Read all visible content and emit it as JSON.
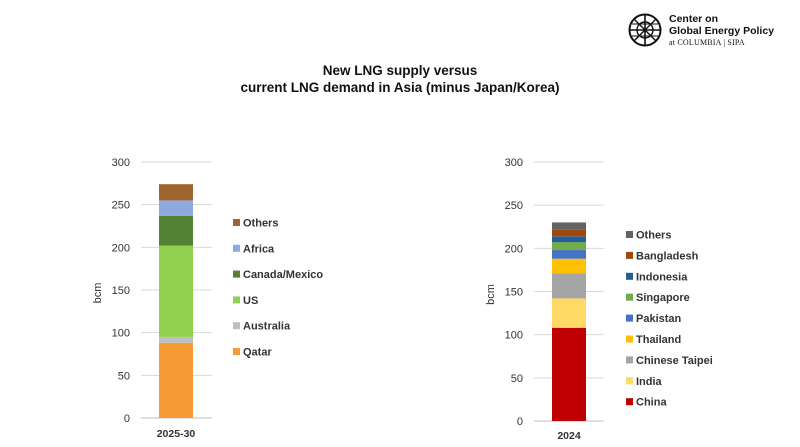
{
  "header": {
    "org_line1": "Center on",
    "org_line2": "Global Energy Policy",
    "org_line3": "at COLUMBIA | SIPA",
    "title_line1": "New LNG supply versus",
    "title_line2": "current LNG demand in Asia (minus Japan/Korea)"
  },
  "chart_data": [
    {
      "type": "bar",
      "stacked": true,
      "categories": [
        "2025-30"
      ],
      "ylabel": "bcm",
      "ylim": [
        0,
        300
      ],
      "yticks": [
        0,
        50,
        100,
        150,
        200,
        250,
        300
      ],
      "grid": true,
      "legend_position": "right",
      "series": [
        {
          "name": "Qatar",
          "values": [
            88
          ],
          "color": "#F99B34"
        },
        {
          "name": "Australia",
          "values": [
            7
          ],
          "color": "#BFBFBF"
        },
        {
          "name": "US",
          "values": [
            107
          ],
          "color": "#92D050"
        },
        {
          "name": "Canada/Mexico",
          "values": [
            35
          ],
          "color": "#548235"
        },
        {
          "name": "Africa",
          "values": [
            18
          ],
          "color": "#8EA9DB"
        },
        {
          "name": "Others",
          "values": [
            19
          ],
          "color": "#A0652E"
        }
      ]
    },
    {
      "type": "bar",
      "stacked": true,
      "categories": [
        "2024"
      ],
      "ylabel": "bcm",
      "ylim": [
        0,
        300
      ],
      "yticks": [
        0,
        50,
        100,
        150,
        200,
        250,
        300
      ],
      "grid": true,
      "legend_position": "right",
      "series": [
        {
          "name": "China",
          "values": [
            108
          ],
          "color": "#C00000"
        },
        {
          "name": "India",
          "values": [
            34
          ],
          "color": "#FFD966"
        },
        {
          "name": "Chinese Taipei",
          "values": [
            29
          ],
          "color": "#A5A5A5"
        },
        {
          "name": "Thailand",
          "values": [
            17
          ],
          "color": "#FFC000"
        },
        {
          "name": "Pakistan",
          "values": [
            10
          ],
          "color": "#4472C4"
        },
        {
          "name": "Singapore",
          "values": [
            9
          ],
          "color": "#70AD47"
        },
        {
          "name": "Indonesia",
          "values": [
            7
          ],
          "color": "#255E91"
        },
        {
          "name": "Bangladesh",
          "values": [
            8
          ],
          "color": "#9E480E"
        },
        {
          "name": "Others",
          "values": [
            8
          ],
          "color": "#636363"
        }
      ]
    }
  ]
}
